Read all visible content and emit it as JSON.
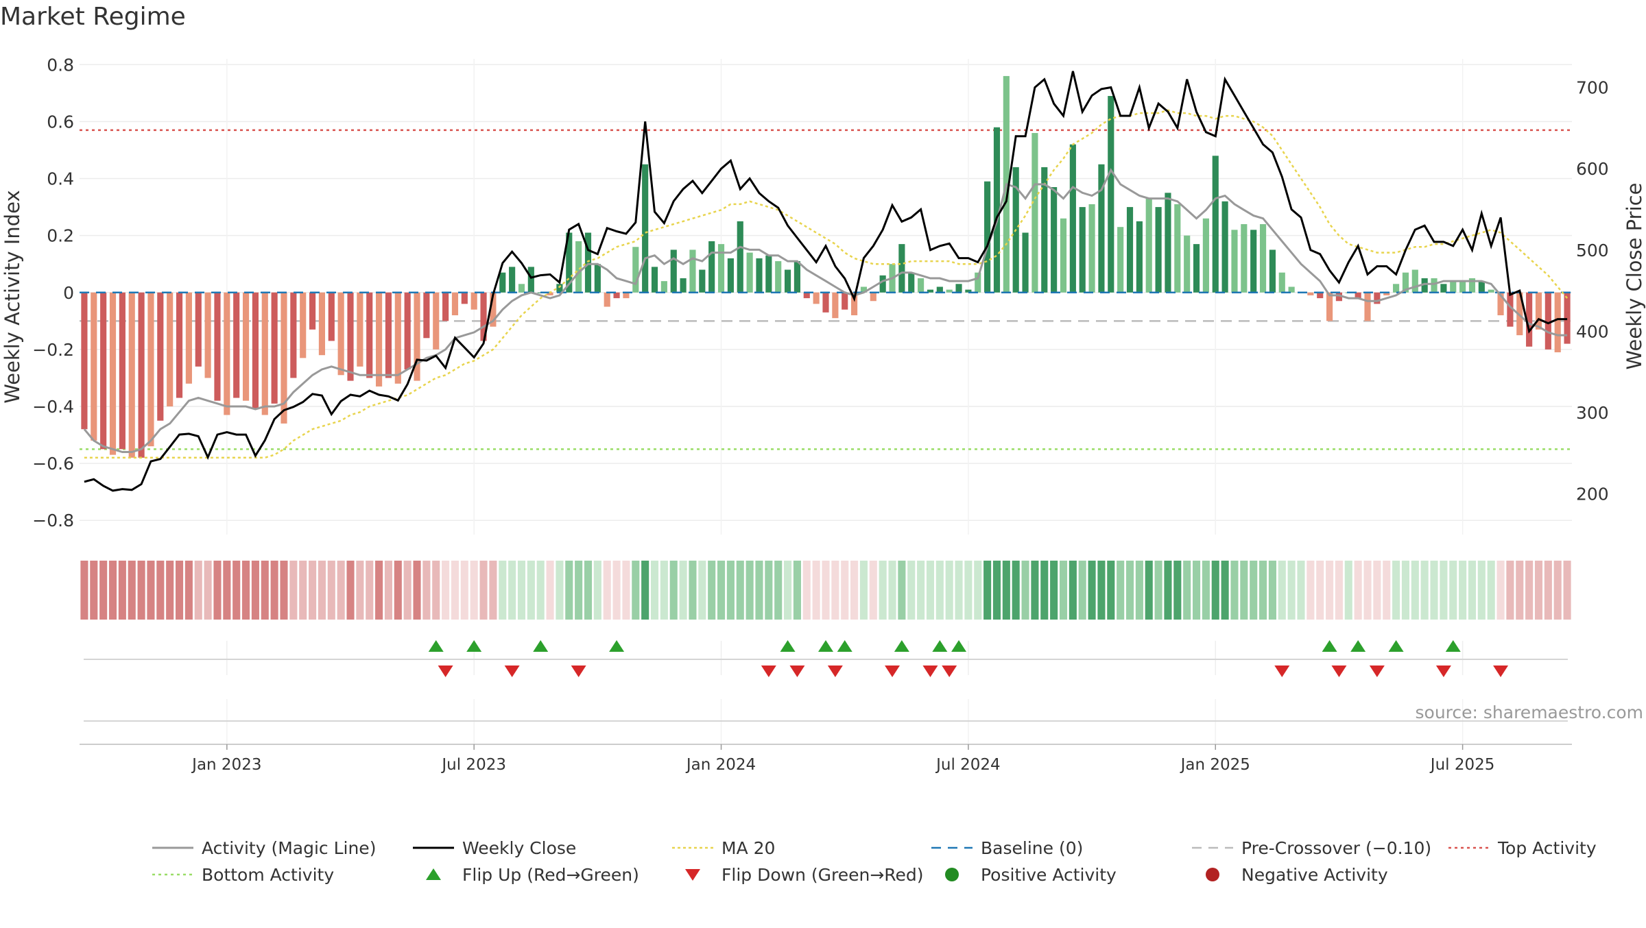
{
  "chart_data": {
    "type": "bar",
    "title": "Market Regime",
    "ylabel": "Weekly Activity Index",
    "y2label": "Weekly Close Price",
    "source": "source: sharemaestro.com",
    "ylim": [
      -0.85,
      0.82
    ],
    "y2lim": [
      150,
      735
    ],
    "yticks": [
      "0.8",
      "0.6",
      "0.4",
      "0.2",
      "0",
      "−0.2",
      "−0.4",
      "−0.6",
      "−0.8"
    ],
    "yticks_values": [
      0.8,
      0.6,
      0.4,
      0.2,
      0,
      -0.2,
      -0.4,
      -0.6,
      -0.8
    ],
    "y2ticks": [
      "700",
      "600",
      "500",
      "400",
      "300",
      "200"
    ],
    "y2ticks_values": [
      700,
      600,
      500,
      400,
      300,
      200
    ],
    "xticks": [
      "Jan 2023",
      "Jul 2023",
      "Jan 2024",
      "Jul 2024",
      "Jan 2025",
      "Jul 2025"
    ],
    "xticks_week_index": [
      15,
      41,
      67,
      93,
      119,
      145
    ],
    "n_weeks": 157,
    "reference_lines": {
      "top_activity": 0.57,
      "bottom_activity": -0.55,
      "pre_crossover": -0.1,
      "baseline": 0
    },
    "legend_position": "bottom",
    "colors": {
      "pos_strong": "#2e8b57",
      "pos_light": "#7cc38b",
      "neg_strong": "#cd5c5c",
      "neg_light": "#e9967a",
      "magic_line": "#999999",
      "close_line": "#000000",
      "ma20": "#e8d44d",
      "baseline": "#1f77b4",
      "pre_crossover": "#bbbbbb",
      "top_line": "#d9534f",
      "bottom_line": "#99dd66",
      "flip_up": "#2ca02c",
      "flip_down": "#d62728",
      "dot_pos": "#228b22",
      "dot_neg": "#b22222"
    },
    "activity_bars": [
      -0.48,
      -0.52,
      -0.55,
      -0.57,
      -0.55,
      -0.58,
      -0.58,
      -0.54,
      -0.45,
      -0.4,
      -0.37,
      -0.32,
      -0.26,
      -0.3,
      -0.38,
      -0.43,
      -0.37,
      -0.38,
      -0.41,
      -0.43,
      -0.39,
      -0.46,
      -0.3,
      -0.23,
      -0.13,
      -0.22,
      -0.17,
      -0.29,
      -0.31,
      -0.26,
      -0.3,
      -0.33,
      -0.3,
      -0.32,
      -0.27,
      -0.31,
      -0.16,
      -0.2,
      -0.1,
      -0.08,
      -0.04,
      -0.06,
      -0.17,
      -0.12,
      0.07,
      0.09,
      0.03,
      0.09,
      0.0,
      -0.01,
      0.03,
      0.21,
      0.18,
      0.21,
      0.1,
      -0.05,
      -0.02,
      -0.02,
      0.16,
      0.45,
      0.09,
      0.04,
      0.15,
      0.05,
      0.15,
      0.08,
      0.18,
      0.17,
      0.12,
      0.25,
      0.14,
      0.12,
      0.13,
      0.11,
      0.08,
      0.11,
      -0.02,
      -0.04,
      -0.07,
      -0.09,
      -0.06,
      -0.08,
      0.02,
      -0.03,
      0.06,
      0.1,
      0.17,
      0.07,
      0.05,
      0.01,
      0.02,
      0.01,
      0.03,
      0.01,
      0.07,
      0.39,
      0.58,
      0.76,
      0.44,
      0.21,
      0.56,
      0.44,
      0.37,
      0.26,
      0.52,
      0.3,
      0.31,
      0.45,
      0.69,
      0.23,
      0.3,
      0.25,
      0.33,
      0.3,
      0.35,
      0.31,
      0.2,
      0.17,
      0.26,
      0.48,
      0.32,
      0.22,
      0.24,
      0.22,
      0.24,
      0.15,
      0.07,
      0.02,
      0.0,
      -0.01,
      -0.02,
      -0.1,
      -0.03,
      0.0,
      -0.02,
      -0.1,
      -0.04,
      -0.01,
      0.03,
      0.07,
      0.08,
      0.05,
      0.05,
      0.03,
      0.04,
      0.04,
      0.05,
      0.04,
      0.01,
      -0.08,
      -0.12,
      -0.15,
      -0.19,
      -0.13,
      -0.2,
      -0.21,
      -0.18
    ],
    "magic_line": [
      -0.48,
      -0.52,
      -0.54,
      -0.55,
      -0.56,
      -0.56,
      -0.55,
      -0.52,
      -0.48,
      -0.46,
      -0.42,
      -0.38,
      -0.37,
      -0.38,
      -0.39,
      -0.4,
      -0.4,
      -0.4,
      -0.41,
      -0.4,
      -0.4,
      -0.39,
      -0.35,
      -0.32,
      -0.29,
      -0.27,
      -0.26,
      -0.27,
      -0.28,
      -0.29,
      -0.29,
      -0.29,
      -0.29,
      -0.29,
      -0.27,
      -0.25,
      -0.23,
      -0.22,
      -0.2,
      -0.16,
      -0.15,
      -0.14,
      -0.12,
      -0.1,
      -0.06,
      -0.03,
      -0.01,
      0.0,
      -0.01,
      -0.02,
      -0.01,
      0.03,
      0.07,
      0.1,
      0.1,
      0.08,
      0.05,
      0.04,
      0.03,
      0.12,
      0.13,
      0.1,
      0.12,
      0.1,
      0.12,
      0.11,
      0.14,
      0.14,
      0.14,
      0.16,
      0.15,
      0.15,
      0.13,
      0.13,
      0.11,
      0.11,
      0.08,
      0.06,
      0.04,
      0.02,
      0.0,
      -0.01,
      0.0,
      0.02,
      0.04,
      0.05,
      0.07,
      0.07,
      0.06,
      0.05,
      0.05,
      0.04,
      0.04,
      0.04,
      0.05,
      0.16,
      0.25,
      0.38,
      0.37,
      0.33,
      0.38,
      0.38,
      0.36,
      0.33,
      0.37,
      0.35,
      0.34,
      0.36,
      0.43,
      0.38,
      0.36,
      0.34,
      0.33,
      0.33,
      0.33,
      0.32,
      0.29,
      0.26,
      0.29,
      0.33,
      0.34,
      0.31,
      0.29,
      0.27,
      0.26,
      0.22,
      0.18,
      0.14,
      0.1,
      0.07,
      0.04,
      -0.01,
      -0.01,
      -0.02,
      -0.02,
      -0.03,
      -0.03,
      -0.02,
      -0.01,
      0.01,
      0.02,
      0.03,
      0.03,
      0.04,
      0.04,
      0.04,
      0.04,
      0.04,
      0.03,
      -0.01,
      -0.05,
      -0.08,
      -0.11,
      -0.12,
      -0.14,
      -0.15,
      -0.15
    ],
    "weekly_close": [
      215,
      218,
      210,
      204,
      206,
      205,
      212,
      240,
      243,
      258,
      273,
      274,
      271,
      245,
      273,
      276,
      273,
      273,
      247,
      266,
      292,
      303,
      307,
      313,
      323,
      321,
      298,
      314,
      322,
      320,
      327,
      322,
      320,
      315,
      335,
      365,
      364,
      370,
      355,
      392,
      380,
      368,
      385,
      445,
      484,
      498,
      484,
      466,
      469,
      470,
      460,
      525,
      532,
      500,
      495,
      527,
      523,
      520,
      534,
      658,
      547,
      533,
      560,
      575,
      585,
      570,
      585,
      600,
      610,
      575,
      588,
      570,
      560,
      552,
      530,
      515,
      500,
      485,
      505,
      480,
      465,
      440,
      490,
      505,
      525,
      555,
      535,
      540,
      550,
      500,
      505,
      508,
      490,
      490,
      485,
      505,
      540,
      560,
      640,
      640,
      700,
      710,
      680,
      665,
      720,
      670,
      690,
      698,
      700,
      665,
      665,
      700,
      650,
      680,
      670,
      650,
      710,
      670,
      645,
      640,
      710,
      690,
      670,
      650,
      630,
      620,
      590,
      550,
      540,
      500,
      495,
      475,
      460,
      485,
      505,
      470,
      480,
      480,
      470,
      500,
      525,
      530,
      510,
      510,
      505,
      525,
      500,
      545,
      505,
      540,
      445,
      450,
      400,
      415,
      410,
      415,
      415
    ],
    "ma20": [
      -0.58,
      -0.58,
      -0.58,
      -0.58,
      -0.58,
      -0.58,
      -0.58,
      -0.58,
      -0.58,
      -0.58,
      -0.58,
      -0.58,
      -0.58,
      -0.58,
      -0.58,
      -0.58,
      -0.58,
      -0.58,
      -0.58,
      -0.58,
      -0.57,
      -0.55,
      -0.52,
      -0.5,
      -0.48,
      -0.47,
      -0.46,
      -0.45,
      -0.43,
      -0.42,
      -0.4,
      -0.39,
      -0.38,
      -0.37,
      -0.36,
      -0.34,
      -0.32,
      -0.3,
      -0.29,
      -0.27,
      -0.25,
      -0.24,
      -0.22,
      -0.2,
      -0.16,
      -0.12,
      -0.08,
      -0.05,
      -0.02,
      0.0,
      0.02,
      0.05,
      0.08,
      0.11,
      0.12,
      0.14,
      0.16,
      0.17,
      0.18,
      0.21,
      0.22,
      0.23,
      0.24,
      0.25,
      0.26,
      0.27,
      0.28,
      0.29,
      0.31,
      0.31,
      0.32,
      0.31,
      0.3,
      0.29,
      0.27,
      0.25,
      0.23,
      0.21,
      0.19,
      0.17,
      0.14,
      0.12,
      0.11,
      0.1,
      0.1,
      0.1,
      0.1,
      0.11,
      0.11,
      0.11,
      0.11,
      0.11,
      0.1,
      0.1,
      0.1,
      0.11,
      0.13,
      0.17,
      0.22,
      0.27,
      0.33,
      0.38,
      0.43,
      0.47,
      0.52,
      0.54,
      0.56,
      0.59,
      0.61,
      0.62,
      0.62,
      0.63,
      0.63,
      0.63,
      0.64,
      0.63,
      0.63,
      0.62,
      0.62,
      0.61,
      0.62,
      0.62,
      0.61,
      0.6,
      0.58,
      0.55,
      0.5,
      0.45,
      0.4,
      0.35,
      0.3,
      0.24,
      0.2,
      0.17,
      0.16,
      0.15,
      0.14,
      0.14,
      0.14,
      0.15,
      0.16,
      0.16,
      0.17,
      0.17,
      0.18,
      0.19,
      0.2,
      0.21,
      0.22,
      0.21,
      0.18,
      0.15,
      0.12,
      0.09,
      0.06,
      0.02,
      -0.02
    ],
    "flip_up_weeks": [
      37,
      41,
      48,
      56,
      74,
      78,
      80,
      86,
      90,
      92,
      131,
      134,
      138,
      144
    ],
    "flip_down_weeks": [
      38,
      45,
      52,
      72,
      75,
      79,
      85,
      89,
      91,
      126,
      132,
      136,
      143,
      149
    ],
    "legend": [
      {
        "label": "Activity (Magic Line)",
        "style": "solid-gray"
      },
      {
        "label": "Weekly Close",
        "style": "solid-black"
      },
      {
        "label": "MA 20",
        "style": "dotted-yellow"
      },
      {
        "label": "Baseline (0)",
        "style": "dashed-blue"
      },
      {
        "label": "Pre-Crossover (−0.10)",
        "style": "dashed-gray"
      },
      {
        "label": "Top Activity",
        "style": "dotted-red"
      },
      {
        "label": "Bottom Activity",
        "style": "dotted-green"
      },
      {
        "label": "Flip Up (Red→Green)",
        "style": "triangle-up"
      },
      {
        "label": "Flip Down (Green→Red)",
        "style": "triangle-down"
      },
      {
        "label": "Positive Activity",
        "style": "dot-green"
      },
      {
        "label": "Negative Activity",
        "style": "dot-red"
      }
    ]
  }
}
